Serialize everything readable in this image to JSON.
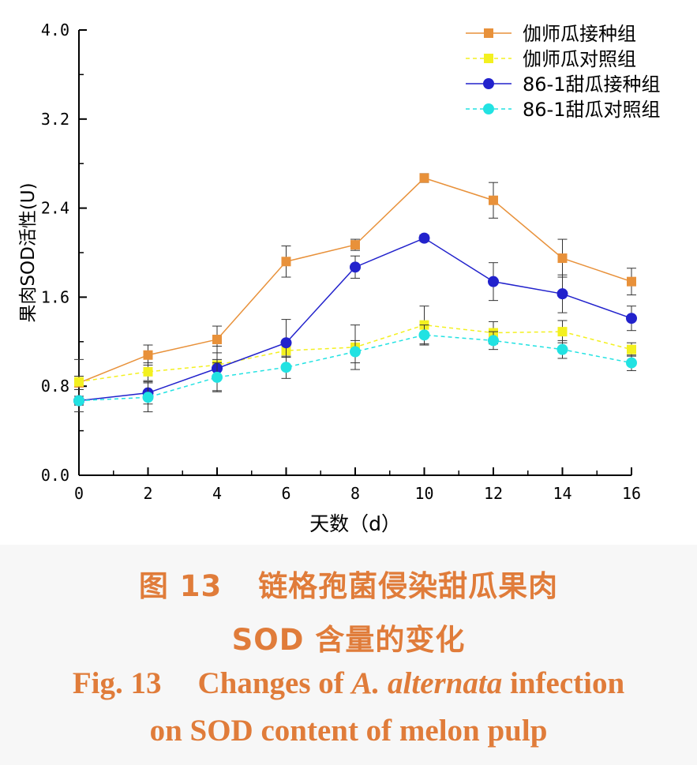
{
  "chart_data": {
    "type": "line",
    "xlabel": "天数（d）",
    "ylabel": "果肉SOD活性(U)",
    "x": [
      0,
      2,
      4,
      6,
      8,
      10,
      12,
      14,
      16
    ],
    "xticks": [
      "0",
      "2",
      "4",
      "6",
      "8",
      "10",
      "12",
      "14",
      "16"
    ],
    "yticks": [
      "0.0",
      "0.8",
      "1.6",
      "2.4",
      "3.2",
      "4.0"
    ],
    "xlim": [
      0,
      16
    ],
    "ylim": [
      0,
      4.0
    ],
    "grid": false,
    "legend_position": "top-right",
    "series": [
      {
        "name": "伽师瓜接种组",
        "color": "#E8913A",
        "marker": "square",
        "line": "solid",
        "values": [
          0.83,
          1.08,
          1.22,
          1.92,
          2.07,
          2.67,
          2.47,
          1.95,
          1.74
        ],
        "errors": [
          0.06,
          0.09,
          0.12,
          0.14,
          0.05,
          0.04,
          0.16,
          0.17,
          0.12
        ]
      },
      {
        "name": "伽师瓜对照组",
        "color": "#F3F020",
        "marker": "square",
        "line": "dashed",
        "values": [
          0.84,
          0.93,
          0.99,
          1.12,
          1.15,
          1.35,
          1.28,
          1.29,
          1.13
        ],
        "errors": [
          0.2,
          0.08,
          0.05,
          0.06,
          0.2,
          0.17,
          0.1,
          0.1,
          0.06
        ]
      },
      {
        "name": "86-1甜瓜接种组",
        "color": "#2222CC",
        "marker": "circle",
        "line": "solid",
        "values": [
          0.67,
          0.74,
          0.96,
          1.19,
          1.87,
          2.13,
          1.74,
          1.63,
          1.41
        ],
        "errors": [
          0.04,
          0.1,
          0.2,
          0.21,
          0.1,
          0.03,
          0.17,
          0.17,
          0.11
        ]
      },
      {
        "name": "86-1甜瓜对照组",
        "color": "#22E2E2",
        "marker": "circle",
        "line": "dashed",
        "values": [
          0.67,
          0.7,
          0.88,
          0.97,
          1.11,
          1.26,
          1.21,
          1.13,
          1.01
        ],
        "errors": [
          0.1,
          0.13,
          0.13,
          0.1,
          0.1,
          0.09,
          0.08,
          0.08,
          0.07
        ]
      }
    ]
  },
  "caption": {
    "cn_line1_num": "图 13",
    "cn_line1_text": "链格孢菌侵染甜瓜果肉",
    "cn_line2": "SOD 含量的变化",
    "en_line1_prefix": "Fig. 13",
    "en_line1_text": "Changes of",
    "en_line1_species": "A. alternata",
    "en_line1_suffix": "infection",
    "en_line2": "on SOD content of melon pulp",
    "color": "#E07C3A"
  }
}
